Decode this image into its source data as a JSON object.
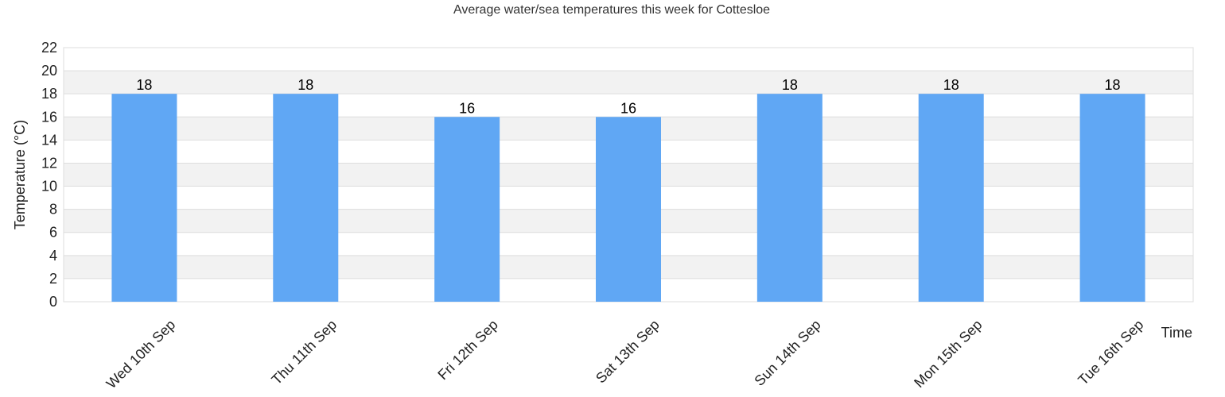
{
  "chart_data": {
    "type": "bar",
    "title": "Average water/sea temperatures this week for Cottesloe",
    "xlabel": "Time",
    "ylabel": "Temperature (°C)",
    "categories": [
      "Wed 10th Sep",
      "Thu 11th Sep",
      "Fri 12th Sep",
      "Sat 13th Sep",
      "Sun 14th Sep",
      "Mon 15th Sep",
      "Tue 16th Sep"
    ],
    "values": [
      18,
      18,
      16,
      16,
      18,
      18,
      18
    ],
    "data_labels": [
      "18",
      "18",
      "16",
      "16",
      "18",
      "18",
      "18"
    ],
    "ylim": [
      0,
      22
    ],
    "yticks": [
      "0",
      "2",
      "4",
      "6",
      "8",
      "10",
      "12",
      "14",
      "16",
      "18",
      "20",
      "22"
    ],
    "grid": true,
    "bar_color": "#60a7f4",
    "band_color": "#f2f2f2",
    "gridline_color": "#dddddd"
  }
}
